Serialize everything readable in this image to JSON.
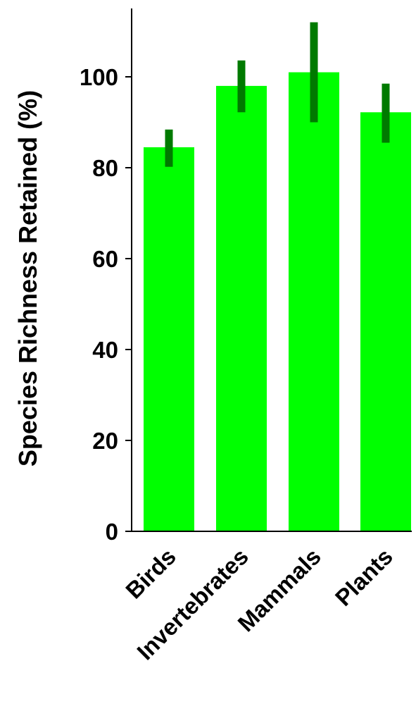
{
  "chart_data": {
    "type": "bar",
    "title": "",
    "xlabel": "",
    "ylabel": "Species Richness Retained (%)",
    "categories": [
      "Birds",
      "Invertebrates",
      "Mammals",
      "Plants"
    ],
    "values": [
      84.5,
      98,
      101,
      92.2
    ],
    "error_low": [
      80.2,
      92.2,
      90,
      85.5
    ],
    "error_high": [
      88.4,
      103.6,
      112,
      98.5
    ],
    "ylim": [
      0,
      115
    ],
    "yticks": [
      0,
      20,
      40,
      60,
      80,
      100
    ],
    "grid": false,
    "legend": "none",
    "colors": {
      "bar": "#00ff00",
      "error_bar": "#007a00",
      "axis": "#000000"
    }
  }
}
